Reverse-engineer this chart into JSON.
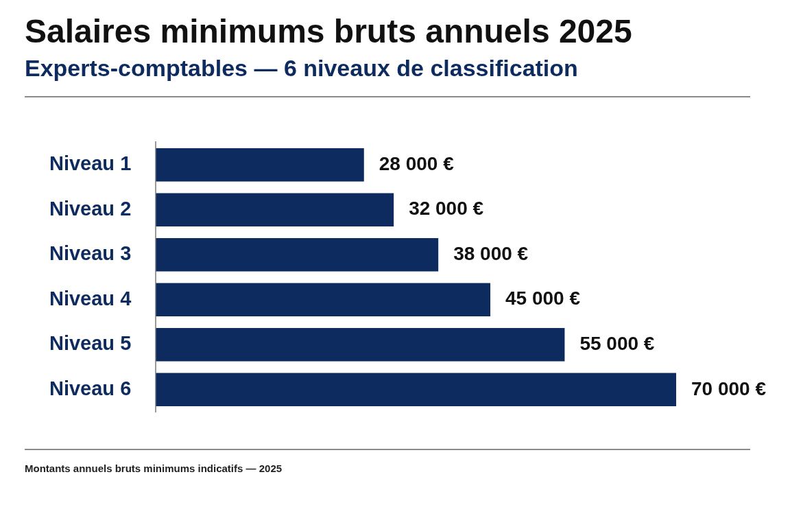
{
  "chart_data": {
    "type": "bar",
    "orientation": "horizontal",
    "title": "Salaires minimums bruts annuels 2025",
    "subtitle": "Experts-comptables — 6 niveaux de classification",
    "categories": [
      "Niveau 1",
      "Niveau 2",
      "Niveau 3",
      "Niveau 4",
      "Niveau 5",
      "Niveau 6"
    ],
    "values": [
      28000,
      32000,
      38000,
      45000,
      55000,
      70000
    ],
    "value_labels": [
      "28 000 €",
      "32 000 €",
      "38 000 €",
      "45 000 €",
      "55 000 €",
      "70 000 €"
    ],
    "color": "#0d2b5e",
    "grid": false,
    "legend": false,
    "annotations": [
      "Montants annuels bruts minimums indicatifs — 2025"
    ]
  }
}
